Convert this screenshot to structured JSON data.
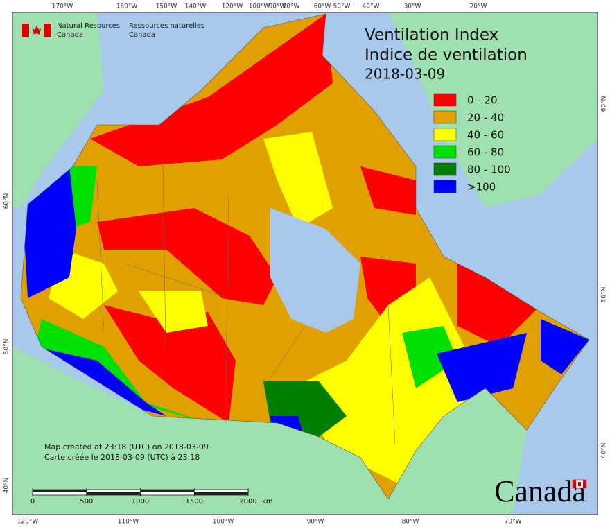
{
  "header": {
    "org_en": [
      "Natural Resources",
      "Canada"
    ],
    "org_fr": [
      "Ressources naturelles",
      "Canada"
    ]
  },
  "title": {
    "en": "Ventilation Index",
    "fr": "Indice de ventilation",
    "date": "2018-03-09"
  },
  "legend": [
    {
      "label": "0 - 20",
      "color": "#ff0000"
    },
    {
      "label": "20 - 40",
      "color": "#e0a000"
    },
    {
      "label": "40 - 60",
      "color": "#ffff00"
    },
    {
      "label": "60 - 80",
      "color": "#00e000"
    },
    {
      "label": "80 - 100",
      "color": "#008000"
    },
    {
      "label": ">100",
      "color": "#0000ff"
    }
  ],
  "axes": {
    "top": [
      "170°W",
      "160°W",
      "150°W",
      "140°W",
      "120°W",
      "100°W",
      "90°W",
      "80°W",
      "60°W",
      "50°W",
      "40°W",
      "30°W",
      "20°W"
    ],
    "bottom": [
      "120°W",
      "110°W",
      "100°W",
      "90°W",
      "80°W",
      "70°W"
    ],
    "left": [
      "60°N",
      "50°N",
      "40°N"
    ],
    "right": [
      "60°N",
      "50°N",
      "40°N"
    ]
  },
  "footer": {
    "en": "Map created at 23:18 (UTC) on 2018-03-09",
    "fr": "Carte créée le 2018-03-09 (UTC) à 23:18"
  },
  "scale": {
    "ticks": [
      0,
      500,
      1000,
      1500,
      2000
    ],
    "unit": "km"
  },
  "wordmark": "Canada"
}
